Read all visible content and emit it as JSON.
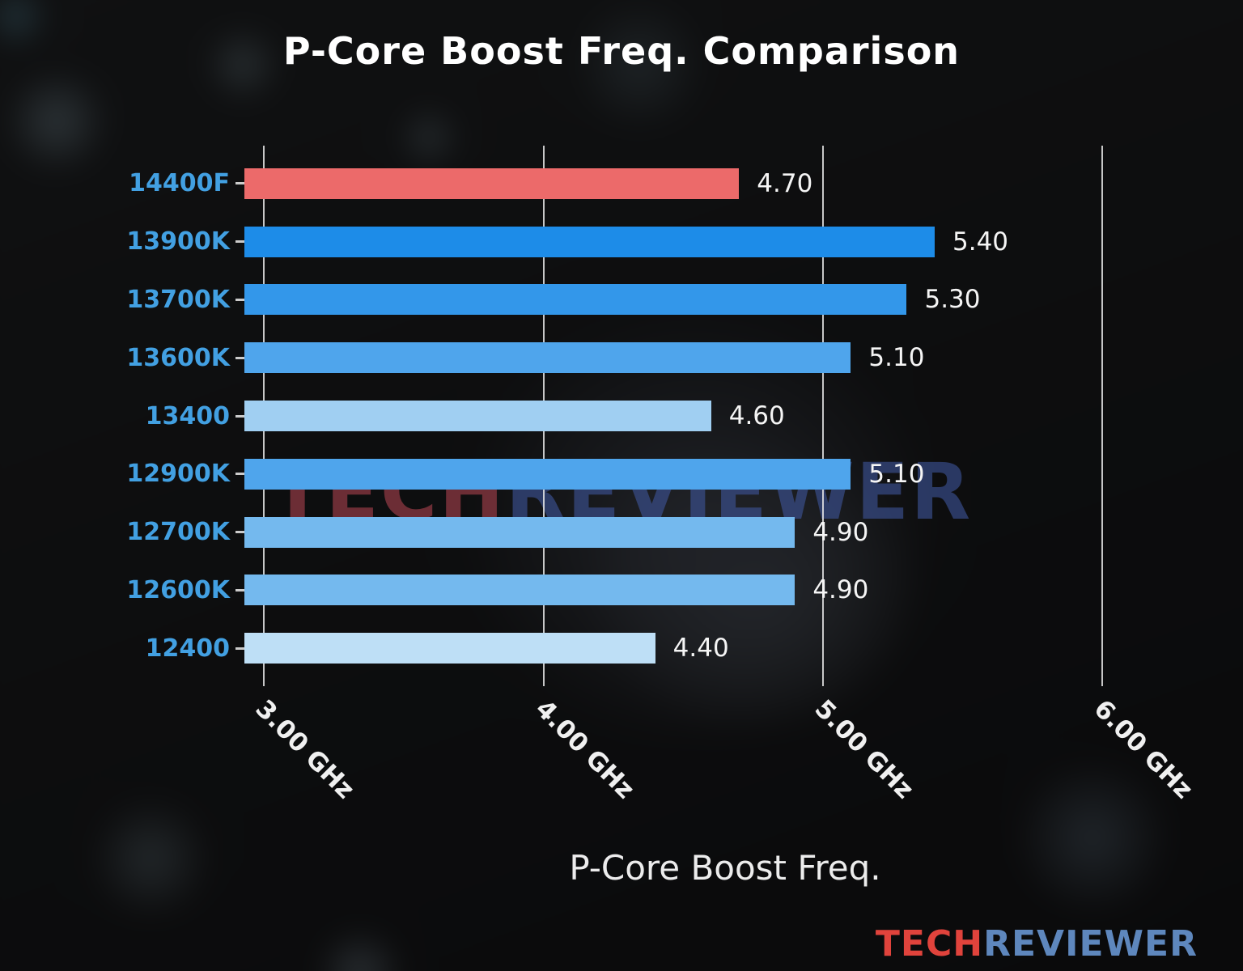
{
  "chart_data": {
    "type": "bar",
    "orientation": "horizontal",
    "title": "P-Core Boost Freq. Comparison",
    "xlabel": "P-Core Boost Freq.",
    "ylabel": "",
    "categories": [
      "14400F",
      "13900K",
      "13700K",
      "13600K",
      "13400",
      "12900K",
      "12700K",
      "12600K",
      "12400"
    ],
    "values": [
      4.7,
      5.4,
      5.3,
      5.1,
      4.6,
      5.1,
      4.9,
      4.9,
      4.4
    ],
    "value_labels": [
      "4.70",
      "5.40",
      "5.30",
      "5.10",
      "4.60",
      "5.10",
      "4.90",
      "4.90",
      "4.40"
    ],
    "bar_colors": [
      "#ec6a6a",
      "#1d8ce8",
      "#3397ea",
      "#4fa5ec",
      "#a0cff2",
      "#4fa5ec",
      "#74b9ee",
      "#74b9ee",
      "#bedff6"
    ],
    "highlight_category": "14400F",
    "x_ticks": [
      3.0,
      4.0,
      5.0,
      6.0
    ],
    "x_tick_labels": [
      "3.00 GHz",
      "4.00 GHz",
      "5.00 GHz",
      "6.00 GHz"
    ],
    "xlim": [
      2.93,
      6.37
    ],
    "grid": true,
    "legend": "none",
    "category_label_color": "#42a0e2"
  },
  "watermark": {
    "part1": "TECH",
    "part2": "REVIEWER"
  },
  "logo": {
    "part1": "TECH",
    "part2": "REVIEWER"
  },
  "colors": {
    "background": "#0b0c0d",
    "title_text": "#ffffff",
    "value_text": "#f5f5f5",
    "gridline": "#e8e8e8",
    "highlight_bar": "#ec6a6a",
    "category_label": "#42a0e2",
    "watermark_red": "#923a44",
    "watermark_blue": "#3e5498",
    "logo_red": "#e0433c",
    "logo_blue": "#5e87bd"
  }
}
